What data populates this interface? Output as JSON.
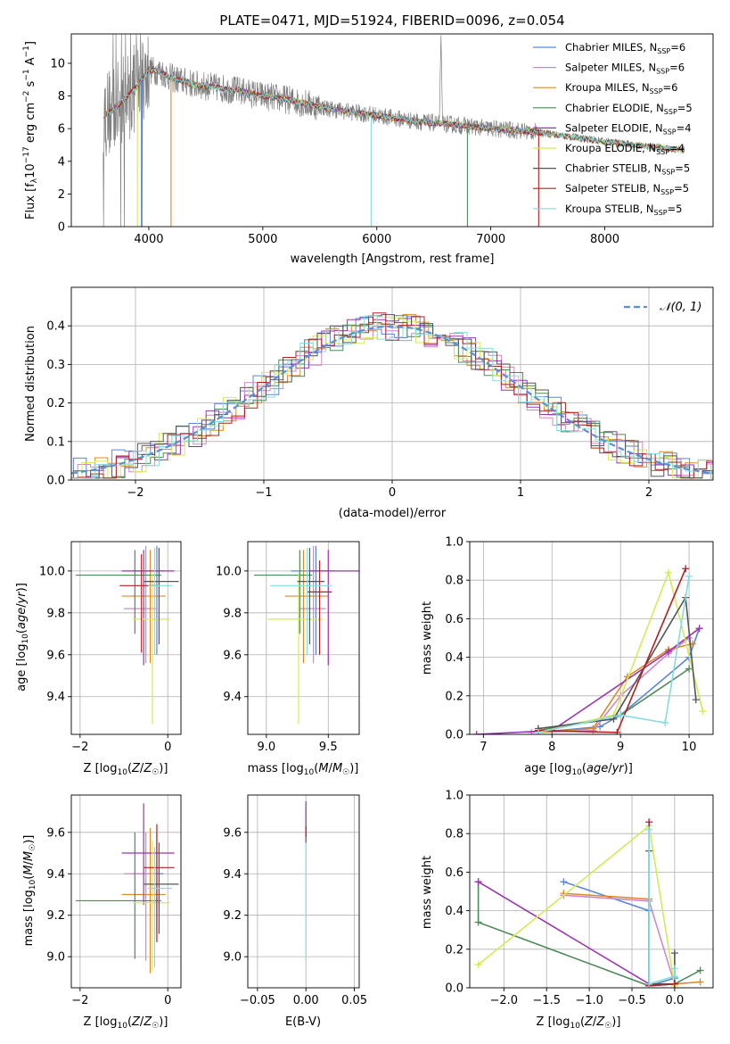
{
  "colors": {
    "palette": [
      "#5b86d6",
      "#cf88c8",
      "#d88a2c",
      "#4f8a5a",
      "#9b35b0",
      "#d5ea55",
      "#555555",
      "#b32020",
      "#86dcdc"
    ],
    "spectrum_data": "#808080",
    "normal_curve": "#5b8fd6"
  },
  "chart_data": [
    {
      "id": "spectrum",
      "type": "line",
      "title": "PLATE=0471, MJD=51924, FIBERID=0096, z=0.054",
      "xlabel": "wavelength [Angstrom, rest frame]",
      "ylabel": "Flux [f_λ 10^-17 erg cm^-2 s^-1 A^-1]",
      "xlim": [
        3320,
        8950
      ],
      "ylim": [
        0,
        11.8
      ],
      "xticks": [
        4000,
        5000,
        6000,
        7000,
        8000
      ],
      "yticks": [
        0,
        2,
        4,
        6,
        8,
        10
      ],
      "grid": false,
      "legend_position": "upper-right",
      "continuum": {
        "x": [
          3600,
          3700,
          3800,
          3900,
          4000,
          4100,
          4200,
          4300,
          4400,
          4600,
          4800,
          5000,
          5200,
          5400,
          5600,
          5800,
          6000,
          6200,
          6400,
          6600,
          6800,
          7000,
          7200,
          7400,
          7600,
          7800,
          8000,
          8200,
          8400,
          8600,
          8700
        ],
        "y": [
          6.8,
          7.2,
          7.9,
          8.6,
          9.6,
          9.5,
          9.1,
          8.9,
          8.7,
          8.5,
          8.3,
          8.0,
          7.8,
          7.5,
          7.2,
          7.0,
          6.8,
          6.6,
          6.4,
          6.3,
          6.15,
          6.0,
          5.9,
          5.8,
          5.6,
          5.4,
          5.2,
          5.05,
          4.9,
          4.75,
          4.7
        ]
      },
      "series": [
        {
          "name": "Chabrier MILES, N_SSP=6",
          "nssp": "6"
        },
        {
          "name": "Salpeter MILES, N_SSP=6",
          "nssp": "6"
        },
        {
          "name": "Kroupa MILES, N_SSP=6",
          "nssp": "6"
        },
        {
          "name": "Chabrier ELODIE, N_SSP=5",
          "nssp": "5"
        },
        {
          "name": "Salpeter ELODIE, N_SSP=4",
          "nssp": "4"
        },
        {
          "name": "Kroupa ELODIE, N_SSP=4",
          "nssp": "4"
        },
        {
          "name": "Chabrier STELIB, N_SSP=5",
          "nssp": "5"
        },
        {
          "name": "Salpeter STELIB, N_SSP=5",
          "nssp": "5"
        },
        {
          "name": "Kroupa STELIB, N_SSP=5",
          "nssp": "5"
        }
      ],
      "drops": [
        {
          "series": 0,
          "x": 3935
        },
        {
          "series": 5,
          "x": 3900
        },
        {
          "series": 2,
          "x": 4195
        },
        {
          "series": 8,
          "x": 5950
        },
        {
          "series": 3,
          "x": 6795
        },
        {
          "series": 7,
          "x": 7420
        }
      ]
    },
    {
      "id": "residuals",
      "type": "histogram",
      "xlabel": "(data-model)/error",
      "ylabel": "Normed distribution",
      "xlim": [
        -2.5,
        2.5
      ],
      "ylim": [
        0,
        0.5
      ],
      "xticks": [
        -2,
        -1,
        0,
        1,
        2
      ],
      "yticks": [
        0.0,
        0.1,
        0.2,
        0.3,
        0.4
      ],
      "grid": true,
      "bin_width": 0.1,
      "reference_curve": "N(0,1)",
      "legend_position": "upper-right"
    },
    {
      "id": "age_vs_Z",
      "type": "errorbar",
      "xlabel": "Z [log10(Z/Z☉)]",
      "ylabel": "age [log10(age/yr)]",
      "xlim": [
        -2.2,
        0.3
      ],
      "ylim": [
        9.22,
        10.14
      ],
      "xticks": [
        -2,
        0
      ],
      "yticks": [
        9.4,
        9.6,
        9.8,
        10.0
      ],
      "grid": true,
      "points": [
        {
          "x": -0.25,
          "y": 10.0,
          "xerr": [
            0.55,
            0.15
          ],
          "yerr": [
            0.4,
            0.12
          ]
        },
        {
          "x": -0.5,
          "y": 9.82,
          "xerr": [
            0.5,
            0.25
          ],
          "yerr": [
            0.26,
            0.3
          ]
        },
        {
          "x": -0.4,
          "y": 9.88,
          "xerr": [
            0.65,
            0.35
          ],
          "yerr": [
            0.32,
            0.22
          ]
        },
        {
          "x": -0.75,
          "y": 9.98,
          "xerr": [
            1.35,
            0.6
          ],
          "yerr": [
            0.28,
            0.12
          ]
        },
        {
          "x": -0.55,
          "y": 10.0,
          "xerr": [
            0.5,
            0.7
          ],
          "yerr": [
            0.45,
            0.1
          ]
        },
        {
          "x": -0.35,
          "y": 9.77,
          "xerr": [
            0.45,
            0.4
          ],
          "yerr": [
            0.5,
            0.22
          ]
        },
        {
          "x": -0.2,
          "y": 9.95,
          "xerr": [
            0.35,
            0.45
          ],
          "yerr": [
            0.3,
            0.16
          ]
        },
        {
          "x": -0.6,
          "y": 9.93,
          "xerr": [
            0.5,
            0.4
          ],
          "yerr": [
            0.32,
            0.15
          ]
        },
        {
          "x": -0.3,
          "y": 9.93,
          "xerr": [
            0.15,
            0.4
          ],
          "yerr": [
            0.33,
            0.18
          ]
        }
      ]
    },
    {
      "id": "age_vs_mass",
      "type": "errorbar",
      "xlabel": "mass [log10(M/M☉)]",
      "ylabel": "",
      "xlim": [
        8.85,
        9.75
      ],
      "ylim": [
        9.22,
        10.14
      ],
      "xticks": [
        9.0,
        9.5
      ],
      "yticks": [
        9.4,
        9.6,
        9.8,
        10.0
      ],
      "grid": true,
      "points": [
        {
          "x": 9.4,
          "y": 10.0,
          "xerr": [
            0.2,
            0.15
          ],
          "yerr": [
            0.4,
            0.12
          ]
        },
        {
          "x": 9.38,
          "y": 9.82,
          "xerr": [
            0.12,
            0.1
          ],
          "yerr": [
            0.26,
            0.3
          ]
        },
        {
          "x": 9.3,
          "y": 9.88,
          "xerr": [
            0.15,
            0.2
          ],
          "yerr": [
            0.32,
            0.22
          ]
        },
        {
          "x": 9.27,
          "y": 9.98,
          "xerr": [
            0.37,
            0.1
          ],
          "yerr": [
            0.28,
            0.12
          ]
        },
        {
          "x": 9.5,
          "y": 10.0,
          "xerr": [
            0.15,
            0.25
          ],
          "yerr": [
            0.45,
            0.1
          ]
        },
        {
          "x": 9.26,
          "y": 9.77,
          "xerr": [
            0.25,
            0.2
          ],
          "yerr": [
            0.5,
            0.22
          ]
        },
        {
          "x": 9.35,
          "y": 9.95,
          "xerr": [
            0.1,
            0.12
          ],
          "yerr": [
            0.3,
            0.16
          ]
        },
        {
          "x": 9.43,
          "y": 9.9,
          "xerr": [
            0.1,
            0.1
          ],
          "yerr": [
            0.3,
            0.15
          ]
        },
        {
          "x": 9.33,
          "y": 9.93,
          "xerr": [
            0.3,
            0.2
          ],
          "yerr": [
            0.33,
            0.18
          ]
        }
      ]
    },
    {
      "id": "weight_vs_age",
      "type": "line",
      "xlabel": "age [log10(age/yr)]",
      "ylabel": "mass weight",
      "xlim": [
        6.8,
        10.35
      ],
      "ylim": [
        0,
        1.0
      ],
      "xticks": [
        7,
        8,
        9,
        10
      ],
      "yticks": [
        0.0,
        0.2,
        0.4,
        0.6,
        0.8,
        1.0
      ],
      "grid": true,
      "series": [
        {
          "x": [
            7.8,
            8.7,
            9.0,
            10.0,
            10.15
          ],
          "y": [
            0.01,
            0.04,
            0.1,
            0.4,
            0.55
          ]
        },
        {
          "x": [
            7.7,
            8.6,
            9.0,
            9.7,
            10.0
          ],
          "y": [
            0.01,
            0.02,
            0.2,
            0.42,
            0.5
          ]
        },
        {
          "x": [
            7.8,
            8.6,
            9.1,
            9.7,
            10.05
          ],
          "y": [
            0.01,
            0.03,
            0.3,
            0.44,
            0.47
          ]
        },
        {
          "x": [
            7.8,
            9.0,
            10.0
          ],
          "y": [
            0.02,
            0.1,
            0.34
          ]
        },
        {
          "x": [
            6.9,
            8.0,
            9.7,
            10.15
          ],
          "y": [
            0.0,
            0.02,
            0.43,
            0.55
          ]
        },
        {
          "x": [
            7.8,
            8.9,
            9.7,
            10.2
          ],
          "y": [
            0.01,
            0.1,
            0.84,
            0.12
          ]
        },
        {
          "x": [
            7.8,
            8.9,
            9.95,
            10.1
          ],
          "y": [
            0.03,
            0.08,
            0.71,
            0.18
          ]
        },
        {
          "x": [
            7.8,
            8.95,
            9.95
          ],
          "y": [
            0.02,
            0.01,
            0.86
          ]
        },
        {
          "x": [
            7.8,
            9.0,
            9.65,
            10.0
          ],
          "y": [
            0.01,
            0.1,
            0.06,
            0.82
          ]
        }
      ]
    },
    {
      "id": "mass_vs_Z",
      "type": "errorbar",
      "xlabel": "Z [log10(Z/Z☉)]",
      "ylabel": "mass [log10(M/M☉)]",
      "xlim": [
        -2.2,
        0.3
      ],
      "ylim": [
        8.85,
        9.78
      ],
      "xticks": [
        -2,
        0
      ],
      "yticks": [
        9.0,
        9.2,
        9.4,
        9.6
      ],
      "grid": true,
      "points": [
        {
          "x": -0.25,
          "y": 9.4,
          "xerr": [
            0.55,
            0.15
          ],
          "yerr": [
            0.28,
            0.2
          ]
        },
        {
          "x": -0.5,
          "y": 9.4,
          "xerr": [
            0.5,
            0.25
          ],
          "yerr": [
            0.42,
            0.2
          ]
        },
        {
          "x": -0.4,
          "y": 9.3,
          "xerr": [
            0.65,
            0.35
          ],
          "yerr": [
            0.38,
            0.32
          ]
        },
        {
          "x": -0.75,
          "y": 9.27,
          "xerr": [
            1.35,
            0.6
          ],
          "yerr": [
            0.28,
            0.33
          ]
        },
        {
          "x": -0.55,
          "y": 9.5,
          "xerr": [
            0.5,
            0.7
          ],
          "yerr": [
            0.25,
            0.24
          ]
        },
        {
          "x": -0.35,
          "y": 9.26,
          "xerr": [
            0.45,
            0.4
          ],
          "yerr": [
            0.33,
            0.3
          ]
        },
        {
          "x": -0.2,
          "y": 9.35,
          "xerr": [
            0.35,
            0.45
          ],
          "yerr": [
            0.24,
            0.2
          ]
        },
        {
          "x": -0.25,
          "y": 9.43,
          "xerr": [
            0.3,
            0.4
          ],
          "yerr": [
            0.36,
            0.21
          ]
        },
        {
          "x": -0.3,
          "y": 9.33,
          "xerr": [
            0.15,
            0.4
          ],
          "yerr": [
            0.38,
            0.2
          ]
        }
      ]
    },
    {
      "id": "mass_vs_EBV",
      "type": "errorbar",
      "xlabel": "E(B-V)",
      "ylabel": "",
      "xlim": [
        -0.06,
        0.055
      ],
      "ylim": [
        8.85,
        9.78
      ],
      "xticks": [
        -0.05,
        0.0,
        0.05
      ],
      "yticks": [
        9.0,
        9.2,
        9.4,
        9.6
      ],
      "grid": true,
      "points": [
        {
          "x": 0.0,
          "y": 9.4,
          "xerr": [
            0,
            0
          ],
          "yerr": [
            0.42,
            0.34
          ]
        }
      ]
    },
    {
      "id": "weight_vs_Z",
      "type": "line",
      "xlabel": "Z [log10(Z/Z☉)]",
      "ylabel": "mass weight",
      "xlim": [
        -2.4,
        0.45
      ],
      "ylim": [
        0,
        1.0
      ],
      "xticks": [
        -2.0,
        -1.5,
        -1.0,
        -0.5,
        0.0
      ],
      "yticks": [
        0.0,
        0.2,
        0.4,
        0.6,
        0.8,
        1.0
      ],
      "grid": true,
      "series": [
        {
          "x": [
            -1.3,
            -0.3,
            -0.3,
            0.0
          ],
          "y": [
            0.55,
            0.4,
            0.01,
            0.05
          ]
        },
        {
          "x": [
            -1.3,
            -0.3,
            0.0
          ],
          "y": [
            0.48,
            0.45,
            0.02
          ]
        },
        {
          "x": [
            -1.3,
            -0.3,
            -0.3,
            0.3
          ],
          "y": [
            0.49,
            0.46,
            0.01,
            0.03
          ]
        },
        {
          "x": [
            -2.3,
            -2.3,
            -0.3,
            0.0,
            0.3
          ],
          "y": [
            0.55,
            0.34,
            0.01,
            0.02,
            0.09
          ]
        },
        {
          "x": [
            -2.3,
            -0.3,
            -0.3,
            0.0
          ],
          "y": [
            0.55,
            0.02,
            0.01,
            0.02
          ]
        },
        {
          "x": [
            -2.3,
            -0.3,
            0.0
          ],
          "y": [
            0.12,
            0.84,
            0.01
          ]
        },
        {
          "x": [
            -0.3,
            -0.3,
            0.0,
            0.0
          ],
          "y": [
            0.71,
            0.02,
            0.02,
            0.18
          ]
        },
        {
          "x": [
            -0.3,
            -0.3,
            0.0
          ],
          "y": [
            0.86,
            0.01,
            0.02
          ]
        },
        {
          "x": [
            -0.3,
            -0.3,
            0.0,
            0.0
          ],
          "y": [
            0.82,
            0.02,
            0.06,
            0.1
          ]
        }
      ]
    }
  ]
}
